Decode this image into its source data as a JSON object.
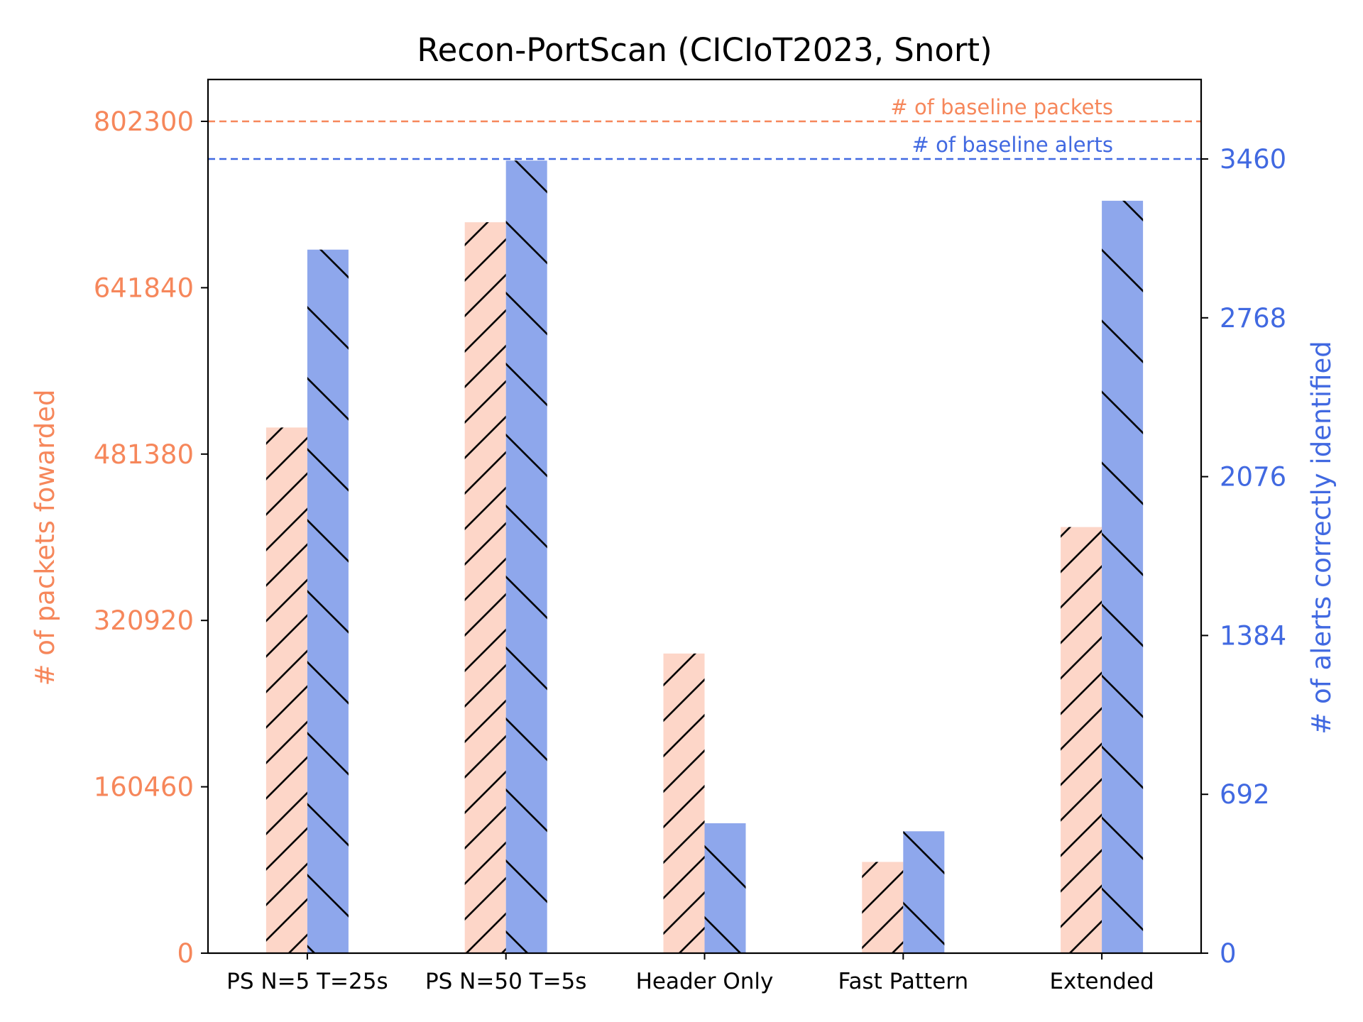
{
  "chart_data": {
    "type": "bar",
    "title": "Recon-PortScan (CICIoT2023, Snort)",
    "categories": [
      "PS N=5 T=25s",
      "PS N=50 T=5s",
      "Header Only",
      "Fast Pattern",
      "Extended"
    ],
    "series": [
      {
        "name": "# of packets fowarded",
        "axis": "left",
        "color": "#FDD6C8",
        "hatch": "forward-diagonal",
        "values": [
          507000,
          705000,
          289000,
          88000,
          411000
        ]
      },
      {
        "name": "# of alerts correctly identified",
        "axis": "right",
        "color": "#8EA7EC",
        "hatch": "backward-diagonal",
        "values": [
          3065,
          3453,
          566,
          531,
          3278
        ]
      }
    ],
    "y_left": {
      "label": "# of packets fowarded",
      "color": "#F6875B",
      "ylim": [
        0,
        802300
      ],
      "ticks": [
        0,
        160460,
        320920,
        481380,
        641840,
        802300
      ],
      "tick_labels": [
        "0",
        "160460",
        "320920",
        "481380",
        "641840",
        "802300"
      ]
    },
    "y_right": {
      "label": "# of alerts correctly identified",
      "color": "#4169E1",
      "ylim": [
        0,
        3460
      ],
      "ticks": [
        0,
        692,
        1384,
        2076,
        2768,
        3460
      ],
      "tick_labels": [
        "0",
        "692",
        "1384",
        "2076",
        "2768",
        "3460"
      ]
    },
    "baselines": [
      {
        "label": "# of baseline packets",
        "axis": "left",
        "value": 802300,
        "color": "#F6875B",
        "style": "dashed"
      },
      {
        "label": "# of baseline alerts",
        "axis": "right",
        "value": 3460,
        "color": "#4169E1",
        "style": "dashed"
      }
    ],
    "grid": false,
    "legend": "none"
  }
}
